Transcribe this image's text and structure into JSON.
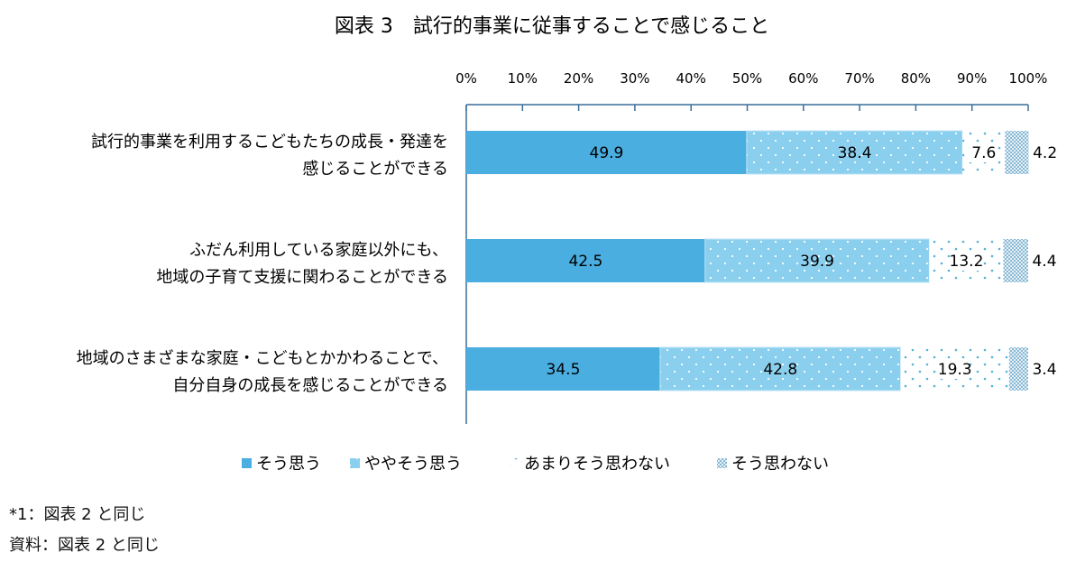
{
  "chart_data": {
    "type": "bar",
    "orientation": "horizontal",
    "stacked": "percent",
    "title": "図表 3　試行的事業に従事することで感じること",
    "categories": [
      [
        "試行的事業を利用するこどもたちの成長・発達を",
        "感じることができる"
      ],
      [
        "ふだん利用している家庭以外にも、",
        "地域の子育て支援に関わることができる"
      ],
      [
        "地域のさまざまな家庭・こどもとかかわることで、",
        "自分自身の成長を感じることができる"
      ]
    ],
    "series": [
      {
        "name": "そう思う",
        "values": [
          49.9,
          42.5,
          34.5
        ],
        "color": "#4aaee0",
        "pattern": "solid"
      },
      {
        "name": "ややそう思う",
        "values": [
          38.4,
          39.9,
          42.8
        ],
        "color": "#8acfee",
        "pattern": "dots-light"
      },
      {
        "name": "あまりそう思わない",
        "values": [
          7.6,
          13.2,
          19.3
        ],
        "color": "#ffffff",
        "pattern": "sparse-dots"
      },
      {
        "name": "そう思わない",
        "values": [
          4.2,
          4.4,
          3.4
        ],
        "color": "#b8d8ea",
        "pattern": "dense-dots"
      }
    ],
    "xlim": [
      0,
      100
    ],
    "xticks": [
      "0%",
      "10%",
      "20%",
      "30%",
      "40%",
      "50%",
      "60%",
      "70%",
      "80%",
      "90%",
      "100%"
    ],
    "axis_position": "top",
    "legend_position": "bottom",
    "grid": false
  },
  "notes": [
    "*1：図表 2 と同じ",
    "資料：図表 2 と同じ"
  ]
}
